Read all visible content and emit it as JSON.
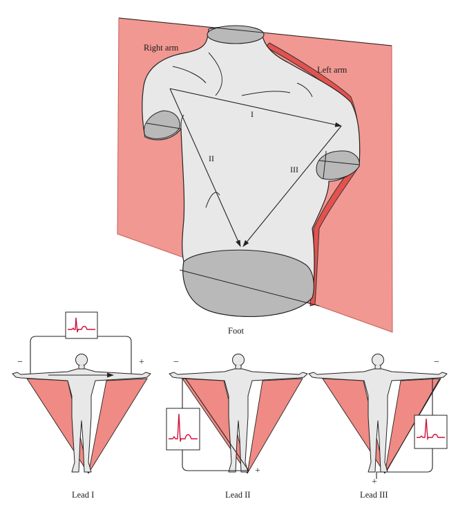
{
  "torso": {
    "right_arm": "Right arm",
    "left_arm": "Left arm",
    "foot": "Foot",
    "lead_1_roman": "I",
    "lead_2_roman": "II",
    "lead_3_roman": "III"
  },
  "leads": [
    {
      "caption": "Lead I",
      "neg": "−",
      "pos": "+"
    },
    {
      "caption": "Lead II",
      "neg": "−",
      "pos": "+"
    },
    {
      "caption": "Lead III",
      "neg": "−",
      "pos": "+"
    }
  ],
  "colors": {
    "plane": "#f19892",
    "plane_edge": "#d45c58",
    "triangle": "#ef8a84",
    "body": "#e8e8e8",
    "shade": "#b9b9b9",
    "ecg": "#d0103a",
    "line": "#222222"
  }
}
